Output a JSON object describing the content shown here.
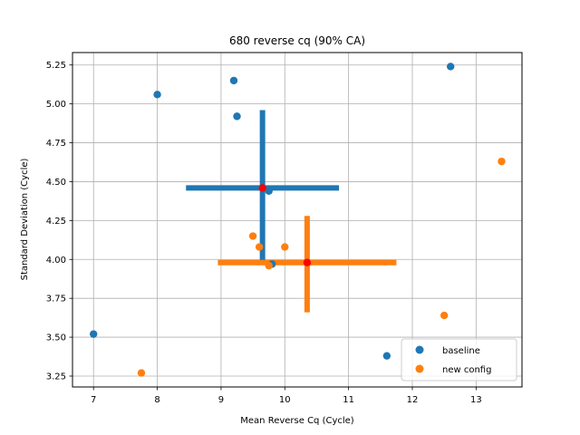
{
  "chart_data": {
    "type": "scatter",
    "title": "680 reverse cq (90% CA)",
    "xlabel": "Mean Reverse Cq (Cycle)",
    "ylabel": "Standard Deviation (Cycle)",
    "xlim": [
      6.67,
      13.72
    ],
    "ylim": [
      3.18,
      5.33
    ],
    "xticks": [
      7,
      8,
      9,
      10,
      11,
      12,
      13
    ],
    "yticks": [
      3.25,
      3.5,
      3.75,
      4.0,
      4.25,
      4.5,
      4.75,
      5.0,
      5.25
    ],
    "xtick_labels": [
      "7",
      "8",
      "9",
      "10",
      "11",
      "12",
      "13"
    ],
    "ytick_labels": [
      "3.25",
      "3.50",
      "3.75",
      "4.00",
      "4.25",
      "4.50",
      "4.75",
      "5.00",
      "5.25"
    ],
    "grid": true,
    "legend_position": "lower right",
    "series": [
      {
        "name": "baseline",
        "color": "#1f77b4",
        "points": [
          {
            "x": 7.0,
            "y": 3.52
          },
          {
            "x": 8.0,
            "y": 5.06
          },
          {
            "x": 9.2,
            "y": 5.15
          },
          {
            "x": 9.25,
            "y": 4.92
          },
          {
            "x": 9.75,
            "y": 4.44
          },
          {
            "x": 9.8,
            "y": 3.97
          },
          {
            "x": 11.6,
            "y": 3.38
          },
          {
            "x": 12.6,
            "y": 5.24
          }
        ],
        "center": {
          "x": 9.65,
          "y": 4.46
        },
        "x_interval": [
          8.45,
          10.85
        ],
        "y_interval": [
          3.97,
          4.96
        ]
      },
      {
        "name": "new config",
        "color": "#ff7f0e",
        "points": [
          {
            "x": 7.75,
            "y": 3.27
          },
          {
            "x": 9.5,
            "y": 4.15
          },
          {
            "x": 9.6,
            "y": 4.08
          },
          {
            "x": 9.75,
            "y": 3.96
          },
          {
            "x": 10.0,
            "y": 4.08
          },
          {
            "x": 12.5,
            "y": 3.64
          },
          {
            "x": 13.4,
            "y": 4.63
          }
        ],
        "center": {
          "x": 10.35,
          "y": 3.98
        },
        "x_interval": [
          8.95,
          11.75
        ],
        "y_interval": [
          3.66,
          4.28
        ]
      }
    ],
    "center_marker_color": "#ff0000"
  }
}
